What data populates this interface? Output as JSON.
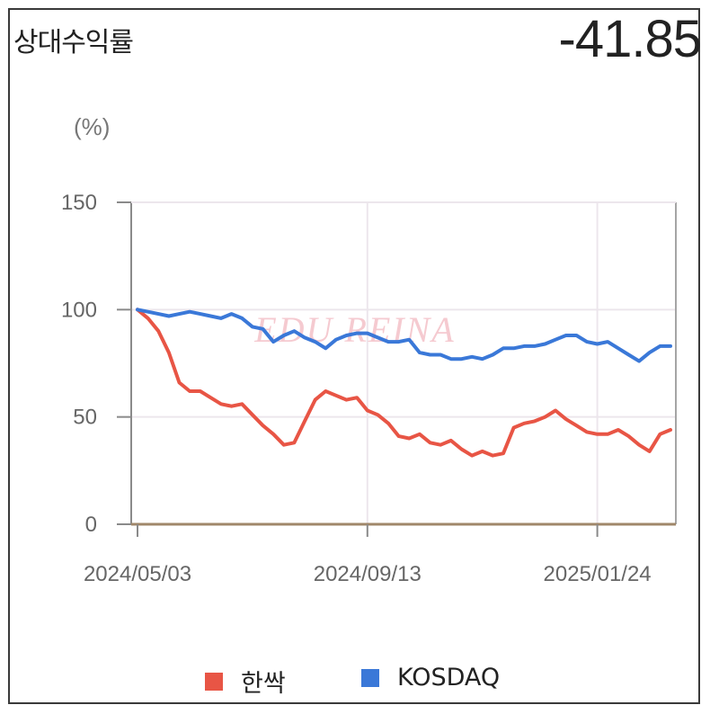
{
  "header": {
    "title": "상대수익률",
    "value": "-41.85",
    "unit": "(%)"
  },
  "chart_data": {
    "type": "line",
    "ylabel": "(%)",
    "ylim": [
      0,
      150
    ],
    "yticks": [
      0,
      50,
      100,
      150
    ],
    "xticks": [
      "2024/05/03",
      "2024/09/13",
      "2025/01/24"
    ],
    "watermark": "EDU REINA",
    "grid": true,
    "legend_position": "bottom",
    "series": [
      {
        "name": "한싹",
        "color": "#e85545",
        "values": [
          100,
          96,
          90,
          80,
          66,
          62,
          62,
          59,
          56,
          55,
          56,
          51,
          46,
          42,
          37,
          38,
          48,
          58,
          62,
          60,
          58,
          59,
          53,
          51,
          47,
          41,
          40,
          42,
          38,
          37,
          39,
          35,
          32,
          34,
          32,
          33,
          45,
          47,
          48,
          50,
          53,
          49,
          46,
          43,
          42,
          42,
          44,
          41,
          37,
          34,
          42,
          44
        ]
      },
      {
        "name": "KOSDAQ",
        "color": "#3a78d8",
        "values": [
          100,
          99,
          98,
          97,
          98,
          99,
          98,
          97,
          96,
          98,
          96,
          92,
          91,
          85,
          88,
          90,
          87,
          85,
          82,
          86,
          88,
          89,
          89,
          87,
          85,
          85,
          86,
          80,
          79,
          79,
          77,
          77,
          78,
          77,
          79,
          82,
          82,
          83,
          83,
          84,
          86,
          88,
          88,
          85,
          84,
          85,
          82,
          79,
          76,
          80,
          83,
          83
        ]
      }
    ]
  }
}
